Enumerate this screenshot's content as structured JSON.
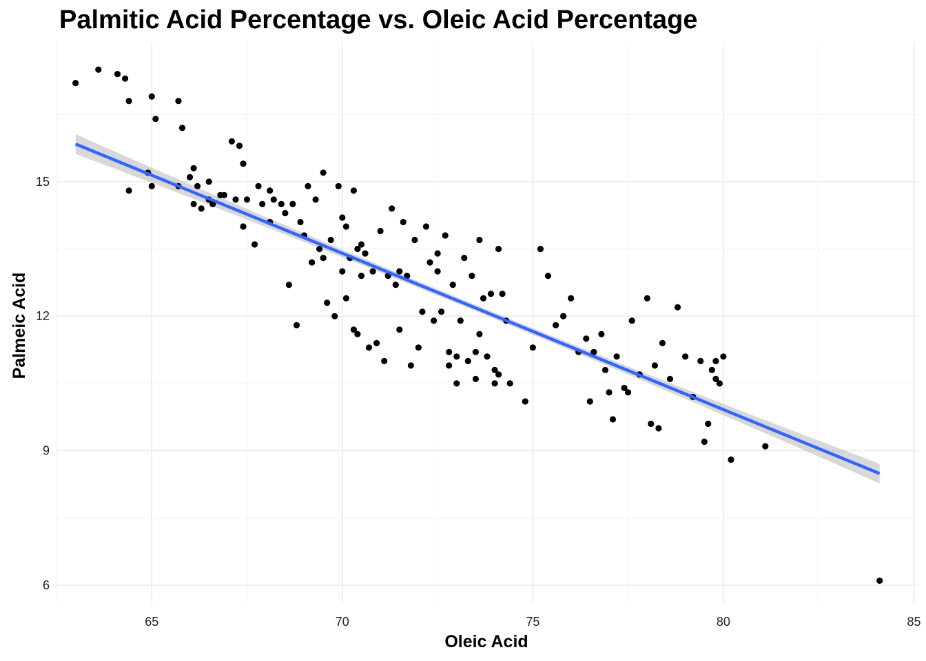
{
  "chart_data": {
    "type": "scatter",
    "title": "Palmitic Acid Percentage vs. Oleic Acid Percentage",
    "xlabel": "Oleic Acid",
    "ylabel": "Palmeic Acid",
    "xlim": [
      62.5,
      85.1
    ],
    "ylim": [
      5.6,
      18.1
    ],
    "x_ticks": [
      65,
      70,
      75,
      80,
      85
    ],
    "y_ticks": [
      6,
      9,
      12,
      15
    ],
    "grid": true,
    "point_color": "#000000",
    "trend_line": {
      "color": "#3366FF",
      "band_color": "#BEBEBE",
      "x": [
        63.0,
        84.1
      ],
      "y": [
        15.84,
        8.49
      ]
    },
    "series": [
      {
        "x": [
          63.0,
          63.6,
          64.1,
          64.3,
          64.4,
          64.4,
          64.9,
          65.0,
          65.0,
          65.1,
          65.7,
          65.7,
          65.8,
          66.0,
          66.1,
          66.1,
          66.2,
          66.3,
          66.5,
          66.5,
          66.6,
          66.8,
          66.9,
          67.1,
          67.2,
          67.3,
          67.4,
          67.4,
          67.5,
          67.7,
          67.8,
          67.9,
          68.1,
          68.1,
          68.2,
          68.4,
          68.5,
          68.6,
          68.7,
          68.8,
          68.9,
          69.0,
          69.1,
          69.2,
          69.3,
          69.4,
          69.5,
          69.6,
          69.7,
          69.8,
          69.9,
          70.0,
          70.0,
          70.1,
          70.1,
          70.2,
          70.3,
          70.3,
          70.4,
          70.4,
          70.5,
          70.6,
          70.7,
          70.8,
          70.9,
          71.0,
          71.1,
          71.2,
          71.3,
          71.4,
          71.5,
          71.6,
          71.7,
          71.8,
          71.9,
          72.0,
          72.1,
          72.2,
          72.3,
          72.4,
          72.5,
          72.6,
          72.7,
          72.8,
          72.9,
          73.0,
          73.1,
          73.2,
          73.3,
          73.4,
          73.5,
          73.6,
          73.7,
          73.8,
          73.9,
          74.0,
          74.1,
          74.2,
          74.3,
          74.4,
          74.8,
          75.0,
          75.2,
          75.4,
          75.6,
          75.8,
          76.0,
          76.2,
          76.4,
          76.6,
          76.8,
          77.0,
          77.2,
          77.4,
          77.6,
          77.8,
          78.0,
          78.2,
          78.4,
          78.6,
          78.8,
          79.0,
          79.2,
          79.4,
          79.6,
          79.8,
          80.0,
          80.2,
          81.1,
          84.1,
          69.5,
          70.5,
          71.5,
          72.5,
          73.5,
          74.0,
          73.0,
          72.8,
          73.6,
          74.1,
          76.5,
          77.1,
          77.5,
          78.1,
          79.5,
          79.7,
          79.8,
          79.9,
          76.9,
          78.3
        ],
        "y": [
          17.2,
          17.5,
          17.4,
          17.3,
          16.8,
          14.8,
          15.2,
          16.9,
          14.9,
          16.4,
          16.8,
          14.9,
          16.2,
          15.1,
          14.5,
          15.3,
          14.9,
          14.4,
          15.0,
          14.6,
          14.5,
          14.7,
          14.7,
          15.9,
          14.6,
          15.8,
          15.4,
          14.0,
          14.6,
          13.6,
          14.9,
          14.5,
          14.8,
          14.1,
          14.6,
          14.5,
          14.3,
          12.7,
          14.5,
          11.8,
          14.1,
          13.8,
          14.9,
          13.2,
          14.6,
          13.5,
          15.2,
          12.3,
          13.7,
          12.0,
          14.9,
          13.0,
          14.2,
          12.4,
          14.0,
          13.3,
          11.7,
          14.8,
          11.6,
          13.5,
          12.9,
          13.4,
          11.3,
          13.0,
          11.4,
          13.9,
          11.0,
          12.9,
          14.4,
          12.7,
          11.7,
          14.1,
          12.9,
          10.9,
          13.7,
          11.3,
          12.1,
          14.0,
          13.2,
          11.9,
          13.0,
          12.1,
          13.8,
          11.2,
          12.7,
          10.5,
          11.9,
          13.3,
          11.0,
          12.9,
          10.6,
          13.7,
          12.4,
          11.1,
          12.5,
          10.5,
          13.5,
          12.5,
          11.9,
          10.5,
          10.1,
          11.3,
          13.5,
          12.9,
          11.8,
          12.0,
          12.4,
          11.2,
          11.5,
          11.2,
          11.6,
          10.3,
          11.1,
          10.4,
          11.9,
          10.7,
          12.4,
          10.9,
          11.4,
          10.6,
          12.2,
          11.1,
          10.2,
          11.0,
          9.6,
          11.0,
          11.1,
          8.8,
          9.1,
          6.1,
          13.3,
          13.6,
          13.0,
          13.4,
          11.2,
          10.8,
          11.1,
          10.9,
          11.6,
          10.7,
          10.1,
          9.7,
          10.3,
          9.6,
          9.2,
          10.8,
          10.6,
          10.5,
          10.8,
          9.5
        ]
      }
    ]
  }
}
